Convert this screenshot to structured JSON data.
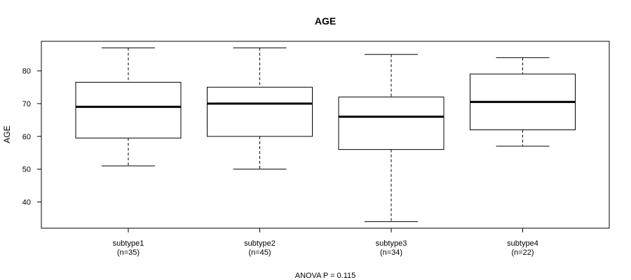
{
  "chart_data": {
    "type": "box",
    "title": "AGE",
    "xlabel": "",
    "ylabel": "AGE",
    "footnote": "ANOVA P = 0.115",
    "ylim": [
      32,
      89
    ],
    "yticks": [
      40,
      50,
      60,
      70,
      80
    ],
    "grid": false,
    "legend": "none",
    "groups": [
      {
        "label": "subtype1",
        "n_label": "(n=35)",
        "min": 51,
        "q1": 59.5,
        "median": 69,
        "q3": 76.5,
        "max": 87
      },
      {
        "label": "subtype2",
        "n_label": "(n=45)",
        "min": 50,
        "q1": 60,
        "median": 70,
        "q3": 75,
        "max": 87
      },
      {
        "label": "subtype3",
        "n_label": "(n=34)",
        "min": 34,
        "q1": 56,
        "median": 66,
        "q3": 72,
        "max": 85
      },
      {
        "label": "subtype4",
        "n_label": "(n=22)",
        "min": 57,
        "q1": 62,
        "median": 70.5,
        "q3": 79,
        "max": 84
      }
    ]
  }
}
